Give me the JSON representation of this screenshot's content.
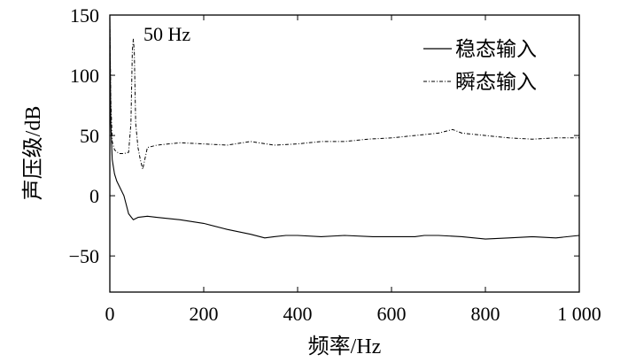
{
  "chart_data": {
    "type": "line",
    "title": "",
    "xlabel": "频率/Hz",
    "ylabel": "声压级/dB",
    "xlim": [
      0,
      1000
    ],
    "ylim": [
      -80,
      150
    ],
    "x_ticks": [
      0,
      200,
      400,
      600,
      800,
      1000
    ],
    "x_tick_labels": [
      "0",
      "200",
      "400",
      "600",
      "800",
      "1 000"
    ],
    "y_ticks": [
      -50,
      0,
      50,
      100,
      150
    ],
    "y_tick_labels": [
      "−50",
      "0",
      "50",
      "100",
      "150"
    ],
    "grid": false,
    "legend_position": "top-right",
    "annotations": [
      {
        "text": "50 Hz",
        "x": 70,
        "y": 134
      }
    ],
    "series": [
      {
        "name": "稳态输入",
        "style": "solid",
        "color": "#000000",
        "x": [
          0,
          2,
          5,
          10,
          15,
          20,
          30,
          40,
          50,
          60,
          80,
          100,
          150,
          200,
          250,
          300,
          330,
          350,
          375,
          400,
          450,
          500,
          560,
          600,
          650,
          670,
          700,
          750,
          800,
          850,
          900,
          950,
          1000
        ],
        "values": [
          148,
          60,
          30,
          18,
          12,
          8,
          0,
          -15,
          -20,
          -18,
          -17,
          -18,
          -20,
          -23,
          -28,
          -32,
          -35,
          -34,
          -33,
          -33,
          -34,
          -33,
          -34,
          -34,
          -34,
          -33,
          -33,
          -34,
          -36,
          -35,
          -34,
          -35,
          -33
        ]
      },
      {
        "name": "瞬态输入",
        "style": "dash-dot",
        "color": "#000000",
        "x": [
          0,
          2,
          5,
          10,
          20,
          30,
          40,
          45,
          48,
          50,
          52,
          55,
          60,
          65,
          70,
          80,
          100,
          150,
          200,
          250,
          300,
          350,
          400,
          450,
          500,
          550,
          600,
          650,
          700,
          730,
          750,
          800,
          850,
          900,
          950,
          1000
        ],
        "values": [
          145,
          80,
          45,
          38,
          35,
          35,
          36,
          60,
          120,
          130,
          120,
          60,
          40,
          30,
          22,
          40,
          42,
          44,
          43,
          42,
          45,
          42,
          43,
          45,
          45,
          47,
          48,
          50,
          52,
          55,
          52,
          50,
          48,
          47,
          48,
          48
        ]
      }
    ]
  }
}
